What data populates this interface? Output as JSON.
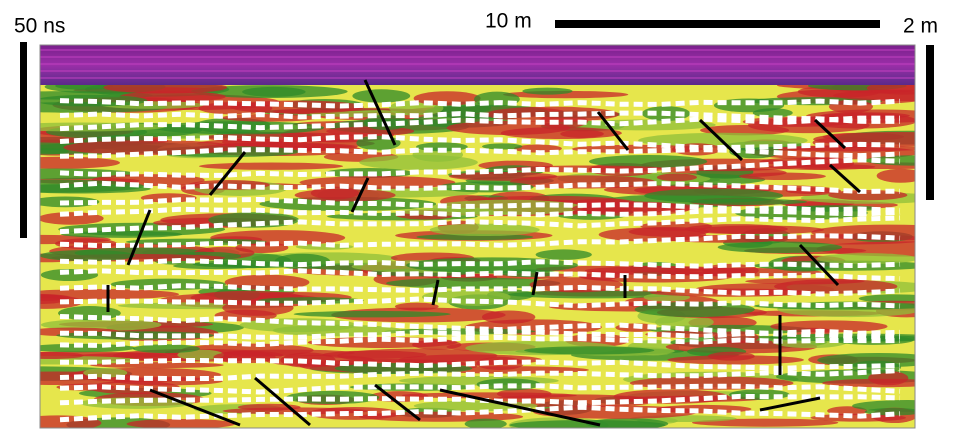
{
  "labels": {
    "time_scale": "50 ns",
    "horizontal_scale": "10 m",
    "depth_scale": "2 m"
  }
}
